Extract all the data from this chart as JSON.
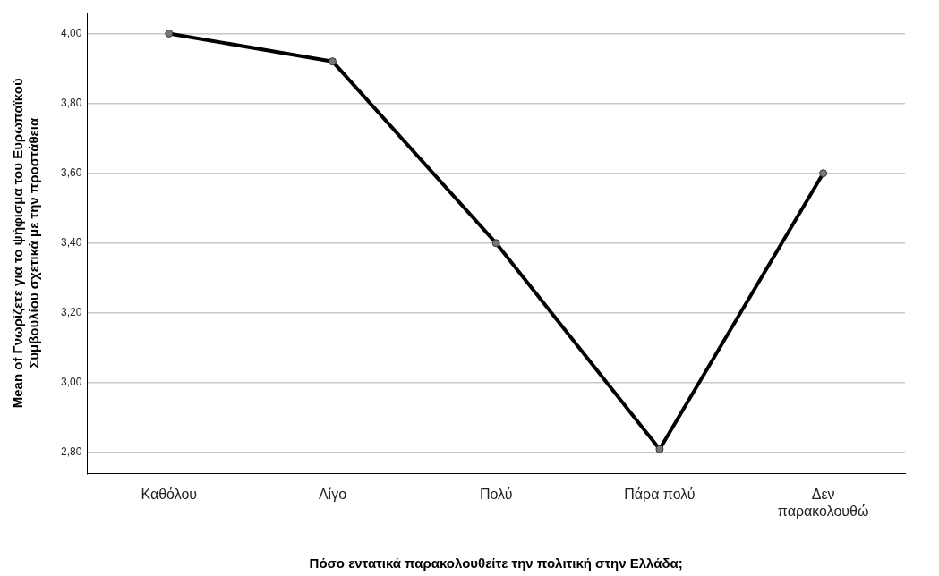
{
  "chart_data": {
    "type": "line",
    "xlabel": "Πόσο εντατικά παρακολουθείτε την πολιτική στην Ελλάδα;",
    "ylabel": "Mean of Γνωρίζετε για το ψήφισμα του Ευρωπαϊκού Συμβουλίου σχετικά με την προστάθεια",
    "categories": [
      "Καθόλου",
      "Λίγο",
      "Πολύ",
      "Πάρα πολύ",
      "Δεν παρακολουθώ"
    ],
    "series": [
      {
        "color": "#000000",
        "values": [
          4.0,
          3.92,
          3.4,
          2.81,
          3.6
        ]
      }
    ],
    "ylim": [
      2.74,
      4.06
    ],
    "yticks": [
      {
        "value": 2.8,
        "label": "2,80"
      },
      {
        "value": 3.0,
        "label": "3,00"
      },
      {
        "value": 3.2,
        "label": "3,20"
      },
      {
        "value": 3.4,
        "label": "3,40"
      },
      {
        "value": 3.6,
        "label": "3,60"
      },
      {
        "value": 3.8,
        "label": "3,80"
      },
      {
        "value": 4.0,
        "label": "4,00"
      }
    ],
    "grid": "y",
    "legend": false,
    "marker": "circle",
    "line_style": "solid"
  }
}
